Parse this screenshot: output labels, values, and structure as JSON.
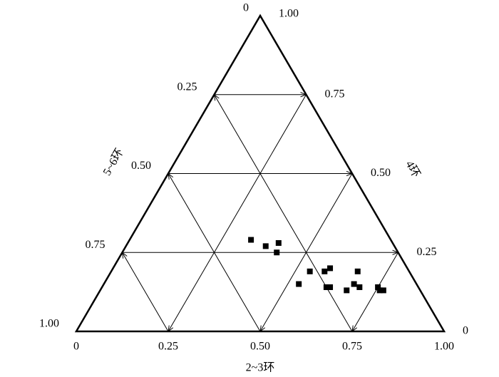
{
  "chart_data": {
    "type": "ternary",
    "bottom_axis": {
      "label": "2~3环",
      "ticks": [
        0,
        0.25,
        {
          "value": 0.5,
          "label": "0.50"
        },
        0.75,
        {
          "value": 1,
          "label": "1.00"
        }
      ]
    },
    "right_axis": {
      "label": "4环",
      "ticks": [
        0,
        0.25,
        {
          "value": 0.5,
          "label": "0.50"
        },
        0.75,
        {
          "value": 1,
          "label": "1.00"
        }
      ]
    },
    "left_axis": {
      "label": "5~6环",
      "ticks": [
        0,
        0.25,
        {
          "value": 0.5,
          "label": "0.50"
        },
        0.75,
        {
          "value": 1,
          "label": "1.00"
        }
      ]
    },
    "grid": true,
    "series": [
      {
        "color": "#000000",
        "a": [
          0.33,
          0.38,
          0.41,
          0.42,
          0.54,
          0.58,
          0.59,
          0.67,
          0.53,
          0.61,
          0.62,
          0.68,
          0.7,
          0.67,
          0.75,
          0.76,
          0.77
        ],
        "b": [
          0.29,
          0.27,
          0.28,
          0.25,
          0.19,
          0.19,
          0.2,
          0.19,
          0.15,
          0.14,
          0.14,
          0.15,
          0.14,
          0.13,
          0.14,
          0.13,
          0.13
        ]
      }
    ]
  }
}
